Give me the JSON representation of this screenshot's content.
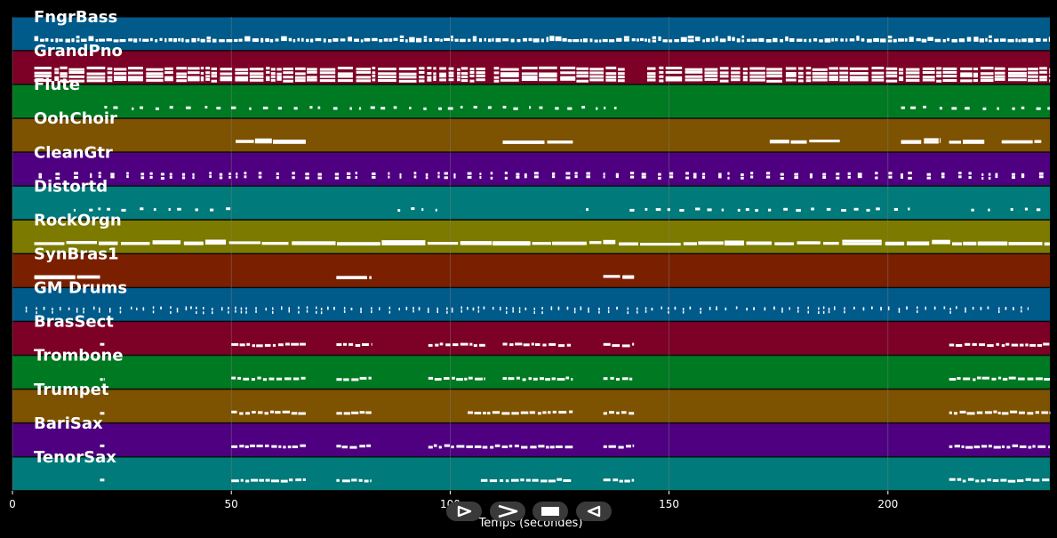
{
  "colors": {
    "background": "#000000",
    "notes": "#ffffff",
    "grid": "#7f7f7f",
    "lane_colors": [
      "#005a8a",
      "#7d0026",
      "#007a22",
      "#7d5200",
      "#4f0080",
      "#007a7a",
      "#7d7a00",
      "#7a2000"
    ]
  },
  "transport": {
    "buttons": [
      {
        "name": "play-icon"
      },
      {
        "name": "fast-forward-icon"
      },
      {
        "name": "stop-icon"
      },
      {
        "name": "rewind-icon"
      }
    ]
  },
  "chart_data": {
    "type": "piano-roll",
    "xlabel": "Temps (secondes)",
    "xlim": [
      0,
      237
    ],
    "xticks": [
      "0",
      "50",
      "100",
      "150",
      "200"
    ],
    "grid": true,
    "tracks": [
      {
        "name": "FngrBass",
        "color": "#005a8a",
        "density": "dense",
        "segments": [
          [
            5,
            237
          ]
        ]
      },
      {
        "name": "GrandPno",
        "color": "#7d0026",
        "density": "chords",
        "segments": [
          [
            5,
            108
          ],
          [
            110,
            140
          ],
          [
            145,
            237
          ]
        ]
      },
      {
        "name": "Flute",
        "color": "#007a22",
        "density": "sparse",
        "segments": [
          [
            21,
            138
          ],
          [
            203,
            237
          ]
        ]
      },
      {
        "name": "OohChoir",
        "color": "#7d5200",
        "density": "held",
        "segments": [
          [
            51,
            67
          ],
          [
            112,
            128
          ],
          [
            173,
            189
          ],
          [
            203,
            212
          ],
          [
            214,
            222
          ],
          [
            226,
            235
          ]
        ]
      },
      {
        "name": "CleanGtr",
        "color": "#4f0080",
        "density": "stabs",
        "segments": [
          [
            6,
            237
          ]
        ]
      },
      {
        "name": "Distortd",
        "color": "#007a7a",
        "density": "sparse",
        "segments": [
          [
            14,
            50
          ],
          [
            88,
            97
          ],
          [
            131,
            133
          ],
          [
            141,
            205
          ],
          [
            219,
            224
          ],
          [
            228,
            235
          ]
        ]
      },
      {
        "name": "RockOrgn",
        "color": "#7d7a00",
        "density": "held",
        "segments": [
          [
            5,
            237
          ]
        ]
      },
      {
        "name": "SynBras1",
        "color": "#7a2000",
        "density": "held",
        "segments": [
          [
            5,
            20
          ],
          [
            74,
            82
          ],
          [
            135,
            142
          ]
        ]
      },
      {
        "name": "GM Drums",
        "color": "#005a8a",
        "density": "hits",
        "segments": [
          [
            3,
            232
          ]
        ]
      },
      {
        "name": "BrasSect",
        "color": "#7d0026",
        "density": "phrases",
        "segments": [
          [
            20,
            21
          ],
          [
            50,
            67
          ],
          [
            74,
            82
          ],
          [
            95,
            108
          ],
          [
            112,
            128
          ],
          [
            135,
            142
          ],
          [
            214,
            237
          ]
        ]
      },
      {
        "name": "Trombone",
        "color": "#007a22",
        "density": "phrases",
        "segments": [
          [
            20,
            21
          ],
          [
            50,
            67
          ],
          [
            74,
            82
          ],
          [
            95,
            108
          ],
          [
            112,
            128
          ],
          [
            135,
            142
          ],
          [
            214,
            237
          ]
        ]
      },
      {
        "name": "Trumpet",
        "color": "#7d5200",
        "density": "phrases",
        "segments": [
          [
            20,
            21
          ],
          [
            50,
            67
          ],
          [
            74,
            82
          ],
          [
            104,
            128
          ],
          [
            135,
            142
          ],
          [
            214,
            237
          ]
        ]
      },
      {
        "name": "BariSax",
        "color": "#4f0080",
        "density": "phrases",
        "segments": [
          [
            20,
            21
          ],
          [
            50,
            67
          ],
          [
            74,
            82
          ],
          [
            95,
            128
          ],
          [
            135,
            142
          ],
          [
            214,
            237
          ]
        ]
      },
      {
        "name": "TenorSax",
        "color": "#007a7a",
        "density": "phrases",
        "segments": [
          [
            20,
            21
          ],
          [
            50,
            67
          ],
          [
            74,
            82
          ],
          [
            107,
            128
          ],
          [
            135,
            142
          ],
          [
            214,
            237
          ]
        ]
      }
    ]
  }
}
